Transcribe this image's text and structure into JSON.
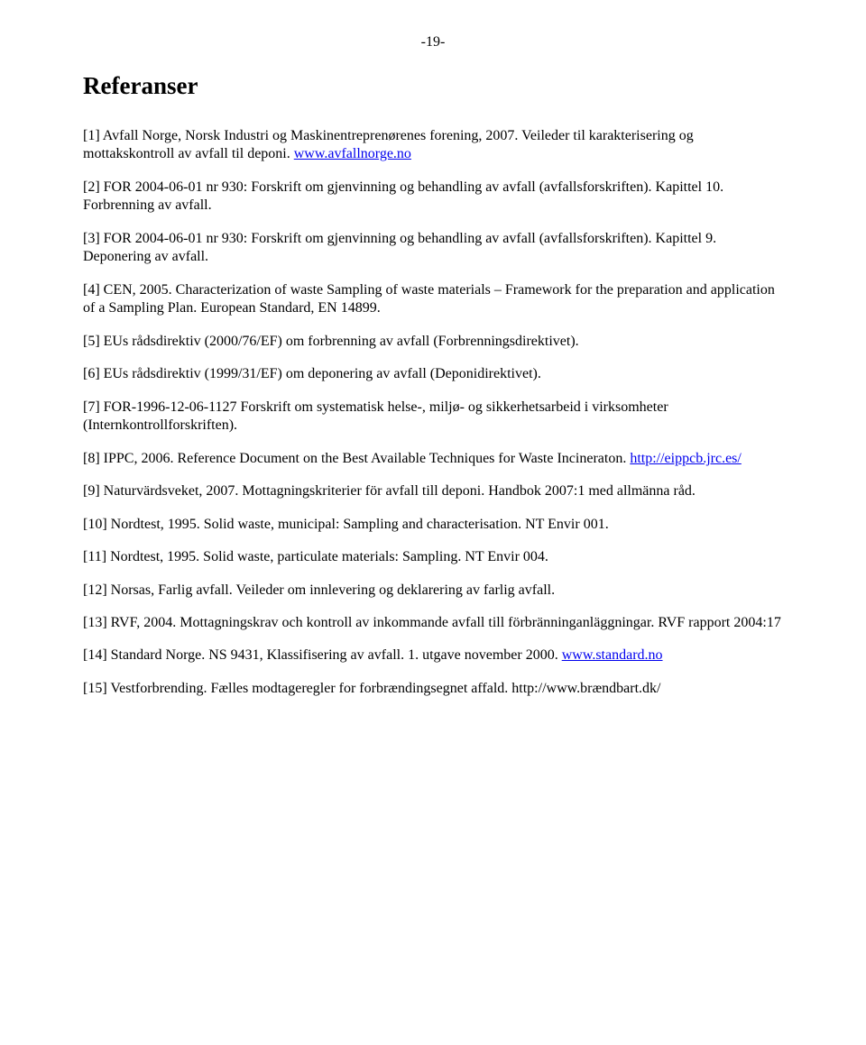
{
  "page_number": "-19-",
  "heading": "Referanser",
  "refs": [
    {
      "pre": "[1] Avfall Norge, Norsk Industri og Maskinentreprenørenes forening, 2007. Veileder til karakterisering og mottakskontroll av avfall til deponi. ",
      "link": "www.avfallnorge.no",
      "post": ""
    },
    {
      "pre": "[2] FOR 2004-06-01 nr 930: Forskrift om gjenvinning og behandling av avfall (avfallsforskriften). Kapittel 10. Forbrenning av avfall.",
      "link": "",
      "post": ""
    },
    {
      "pre": " [3] FOR 2004-06-01 nr 930: Forskrift om gjenvinning og behandling av avfall (avfallsforskriften). Kapittel 9. Deponering av avfall.",
      "link": "",
      "post": ""
    },
    {
      "pre": "[4] CEN, 2005. Characterization of waste Sampling of waste materials – Framework for the preparation and application of a Sampling Plan. European Standard, EN 14899.",
      "link": "",
      "post": ""
    },
    {
      "pre": "[5] EUs rådsdirektiv (2000/76/EF) om forbrenning av avfall (Forbrenningsdirektivet).",
      "link": "",
      "post": ""
    },
    {
      "pre": "[6] EUs rådsdirektiv (1999/31/EF) om deponering av avfall (Deponidirektivet).",
      "link": "",
      "post": ""
    },
    {
      "pre": "[7] FOR-1996-12-06-1127 Forskrift om systematisk helse-, miljø- og sikkerhetsarbeid i virksomheter (Internkontrollforskriften).",
      "link": "",
      "post": ""
    },
    {
      "pre": "[8] IPPC, 2006. Reference Document on the Best Available Techniques for Waste Incineraton. ",
      "link": "http://eippcb.jrc.es/",
      "post": ""
    },
    {
      "pre": "[9] Naturvärdsveket, 2007. Mottagningskriterier för avfall till deponi. Handbok 2007:1 med allmänna råd.",
      "link": "",
      "post": ""
    },
    {
      "pre": "[10] Nordtest, 1995. Solid waste, municipal: Sampling and characterisation. NT Envir 001.",
      "link": "",
      "post": ""
    },
    {
      "pre": "[11] Nordtest, 1995. Solid waste, particulate materials: Sampling. NT Envir 004.",
      "link": "",
      "post": ""
    },
    {
      "pre": "[12] Norsas, Farlig avfall. Veileder om innlevering og deklarering av farlig avfall.",
      "link": "",
      "post": ""
    },
    {
      "pre": "[13] RVF, 2004. Mottagningskrav och kontroll av inkommande avfall till förbränninganläggningar. RVF rapport 2004:17",
      "link": "",
      "post": ""
    },
    {
      "pre": "[14] Standard Norge. NS 9431, Klassifisering av avfall. 1. utgave november 2000. ",
      "link": "www.standard.no",
      "post": ""
    },
    {
      "pre": "[15] Vestforbrending. Fælles modtageregler for forbrændingsegnet affald. http://www.brændbart.dk/",
      "link": "",
      "post": ""
    }
  ]
}
